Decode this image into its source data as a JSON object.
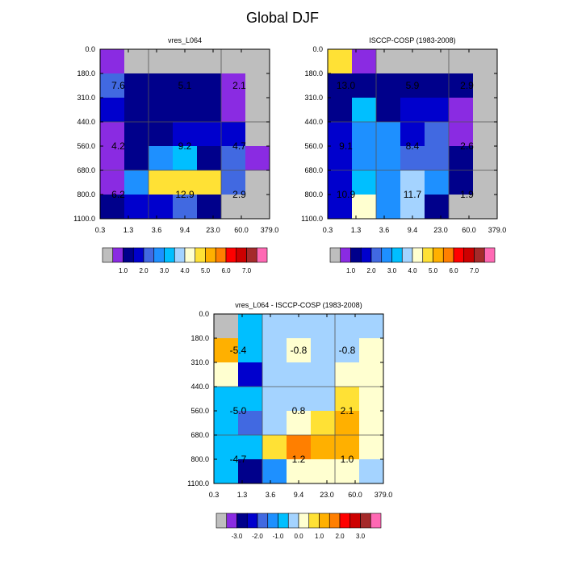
{
  "title": "Global DJF",
  "chart_data": [
    {
      "type": "heatmap",
      "title": "vres_L064",
      "x_ticks": [
        "0.3",
        "1.3",
        "3.6",
        "9.4",
        "23.0",
        "60.0",
        "379.0"
      ],
      "y_ticks": [
        "0.0",
        "180.0",
        "310.0",
        "440.0",
        "560.0",
        "680.0",
        "800.0",
        "1100.0"
      ],
      "cell_colors": [
        [
          "#8a2be2",
          "#bebebe",
          "#bebebe",
          "#bebebe",
          "#bebebe",
          "#bebebe",
          "#bebebe"
        ],
        [
          "#4169e1",
          "#00008b",
          "#00008b",
          "#00008b",
          "#00008b",
          "#8a2be2",
          "#bebebe"
        ],
        [
          "#0000cd",
          "#00008b",
          "#00008b",
          "#00008b",
          "#00008b",
          "#8a2be2",
          "#bebebe"
        ],
        [
          "#8a2be2",
          "#00008b",
          "#00008b",
          "#0000cd",
          "#0000cd",
          "#0000cd",
          "#bebebe"
        ],
        [
          "#8a2be2",
          "#00008b",
          "#1e90ff",
          "#00bfff",
          "#00008b",
          "#4169e1",
          "#8a2be2"
        ],
        [
          "#8a2be2",
          "#1e90ff",
          "#ffe135",
          "#ffe135",
          "#ffe135",
          "#4169e1",
          "#bebebe"
        ],
        [
          "#00008b",
          "#0000cd",
          "#0000cd",
          "#4169e1",
          "#00008b",
          "#bebebe",
          "#bebebe"
        ]
      ],
      "annotations": [
        {
          "text": "7.6",
          "col": 0.75,
          "row": 1.5
        },
        {
          "text": "5.1",
          "col": 3.5,
          "row": 1.5
        },
        {
          "text": "2.1",
          "col": 5.75,
          "row": 1.5
        },
        {
          "text": "4.2",
          "col": 0.75,
          "row": 4.0
        },
        {
          "text": "9.2",
          "col": 3.5,
          "row": 4.0
        },
        {
          "text": "4.7",
          "col": 5.75,
          "row": 4.0
        },
        {
          "text": "6.2",
          "col": 0.75,
          "row": 6.0
        },
        {
          "text": "12.9",
          "col": 3.5,
          "row": 6.0
        },
        {
          "text": "2.9",
          "col": 5.75,
          "row": 6.0
        }
      ],
      "colorbar": {
        "colors": [
          "#bebebe",
          "#8a2be2",
          "#00008b",
          "#0000cd",
          "#4169e1",
          "#1e90ff",
          "#00bfff",
          "#a4d3ff",
          "#ffffd0",
          "#ffe135",
          "#ffb000",
          "#ff7f00",
          "#ff0000",
          "#cd0000",
          "#a52a2a",
          "#ff69b4"
        ],
        "labels": [
          "1.0",
          "2.0",
          "3.0",
          "4.0",
          "5.0",
          "6.0",
          "7.0"
        ]
      }
    },
    {
      "type": "heatmap",
      "title": "ISCCP-COSP (1983-2008)",
      "x_ticks": [
        "0.3",
        "1.3",
        "3.6",
        "9.4",
        "23.0",
        "60.0",
        "379.0"
      ],
      "y_ticks": [
        "0.0",
        "180.0",
        "310.0",
        "440.0",
        "560.0",
        "680.0",
        "800.0",
        "1100.0"
      ],
      "cell_colors": [
        [
          "#ffe135",
          "#8a2be2",
          "#bebebe",
          "#bebebe",
          "#bebebe",
          "#bebebe",
          "#bebebe"
        ],
        [
          "#00008b",
          "#00008b",
          "#00008b",
          "#00008b",
          "#00008b",
          "#00008b",
          "#bebebe"
        ],
        [
          "#00008b",
          "#00bfff",
          "#00008b",
          "#0000cd",
          "#0000cd",
          "#8a2be2",
          "#bebebe"
        ],
        [
          "#0000cd",
          "#1e90ff",
          "#1e90ff",
          "#0000cd",
          "#4169e1",
          "#8a2be2",
          "#bebebe"
        ],
        [
          "#0000cd",
          "#1e90ff",
          "#1e90ff",
          "#4169e1",
          "#4169e1",
          "#00008b",
          "#bebebe"
        ],
        [
          "#0000cd",
          "#00bfff",
          "#1e90ff",
          "#a4d3ff",
          "#1e90ff",
          "#00008b",
          "#bebebe"
        ],
        [
          "#0000cd",
          "#ffffd0",
          "#1e90ff",
          "#a4d3ff",
          "#00008b",
          "#bebebe",
          "#bebebe"
        ]
      ],
      "annotations": [
        {
          "text": "13.0",
          "col": 0.75,
          "row": 1.5
        },
        {
          "text": "5.9",
          "col": 3.5,
          "row": 1.5
        },
        {
          "text": "2.9",
          "col": 5.75,
          "row": 1.5
        },
        {
          "text": "9.1",
          "col": 0.75,
          "row": 4.0
        },
        {
          "text": "8.4",
          "col": 3.5,
          "row": 4.0
        },
        {
          "text": "2.6",
          "col": 5.75,
          "row": 4.0
        },
        {
          "text": "10.9",
          "col": 0.75,
          "row": 6.0
        },
        {
          "text": "11.7",
          "col": 3.5,
          "row": 6.0
        },
        {
          "text": "1.9",
          "col": 5.75,
          "row": 6.0
        }
      ],
      "colorbar": {
        "colors": [
          "#bebebe",
          "#8a2be2",
          "#00008b",
          "#0000cd",
          "#4169e1",
          "#1e90ff",
          "#00bfff",
          "#a4d3ff",
          "#ffffd0",
          "#ffe135",
          "#ffb000",
          "#ff7f00",
          "#ff0000",
          "#cd0000",
          "#a52a2a",
          "#ff69b4"
        ],
        "labels": [
          "1.0",
          "2.0",
          "3.0",
          "4.0",
          "5.0",
          "6.0",
          "7.0"
        ]
      }
    },
    {
      "type": "heatmap",
      "title": "vres_L064 - ISCCP-COSP (1983-2008)",
      "x_ticks": [
        "0.3",
        "1.3",
        "3.6",
        "9.4",
        "23.0",
        "60.0",
        "379.0"
      ],
      "y_ticks": [
        "0.0",
        "180.0",
        "310.0",
        "440.0",
        "560.0",
        "680.0",
        "800.0",
        "1100.0"
      ],
      "cell_colors": [
        [
          "#bebebe",
          "#00bfff",
          "#a4d3ff",
          "#a4d3ff",
          "#a4d3ff",
          "#a4d3ff",
          "#a4d3ff"
        ],
        [
          "#ffb000",
          "#00bfff",
          "#a4d3ff",
          "#ffffd0",
          "#a4d3ff",
          "#a4d3ff",
          "#ffffd0"
        ],
        [
          "#ffffd0",
          "#0000cd",
          "#a4d3ff",
          "#a4d3ff",
          "#a4d3ff",
          "#ffffd0",
          "#ffffd0"
        ],
        [
          "#00bfff",
          "#00bfff",
          "#a4d3ff",
          "#a4d3ff",
          "#a4d3ff",
          "#ffe135",
          "#ffffd0"
        ],
        [
          "#00bfff",
          "#4169e1",
          "#a4d3ff",
          "#ffffd0",
          "#ffe135",
          "#ffb000",
          "#ffffd0"
        ],
        [
          "#00bfff",
          "#00bfff",
          "#ffe135",
          "#ff7f00",
          "#ffb000",
          "#ffb000",
          "#ffffd0"
        ],
        [
          "#00bfff",
          "#00008b",
          "#1e90ff",
          "#ffffd0",
          "#ffffd0",
          "#ffffd0",
          "#a4d3ff"
        ]
      ],
      "annotations": [
        {
          "text": "-5.4",
          "col": 1.0,
          "row": 1.5
        },
        {
          "text": "-0.8",
          "col": 3.5,
          "row": 1.5
        },
        {
          "text": "-0.8",
          "col": 5.5,
          "row": 1.5
        },
        {
          "text": "-5.0",
          "col": 1.0,
          "row": 4.0
        },
        {
          "text": "0.8",
          "col": 3.5,
          "row": 4.0
        },
        {
          "text": "2.1",
          "col": 5.5,
          "row": 4.0
        },
        {
          "text": "-4.7",
          "col": 1.0,
          "row": 6.0
        },
        {
          "text": "1.2",
          "col": 3.5,
          "row": 6.0
        },
        {
          "text": "1.0",
          "col": 5.5,
          "row": 6.0
        }
      ],
      "colorbar": {
        "colors": [
          "#bebebe",
          "#8a2be2",
          "#00008b",
          "#0000cd",
          "#4169e1",
          "#1e90ff",
          "#00bfff",
          "#a4d3ff",
          "#ffffd0",
          "#ffe135",
          "#ffb000",
          "#ff7f00",
          "#ff0000",
          "#cd0000",
          "#a52a2a",
          "#ff69b4"
        ],
        "labels": [
          "-3.0",
          "-2.0",
          "-1.0",
          "0.0",
          "1.0",
          "2.0",
          "3.0"
        ]
      }
    }
  ]
}
